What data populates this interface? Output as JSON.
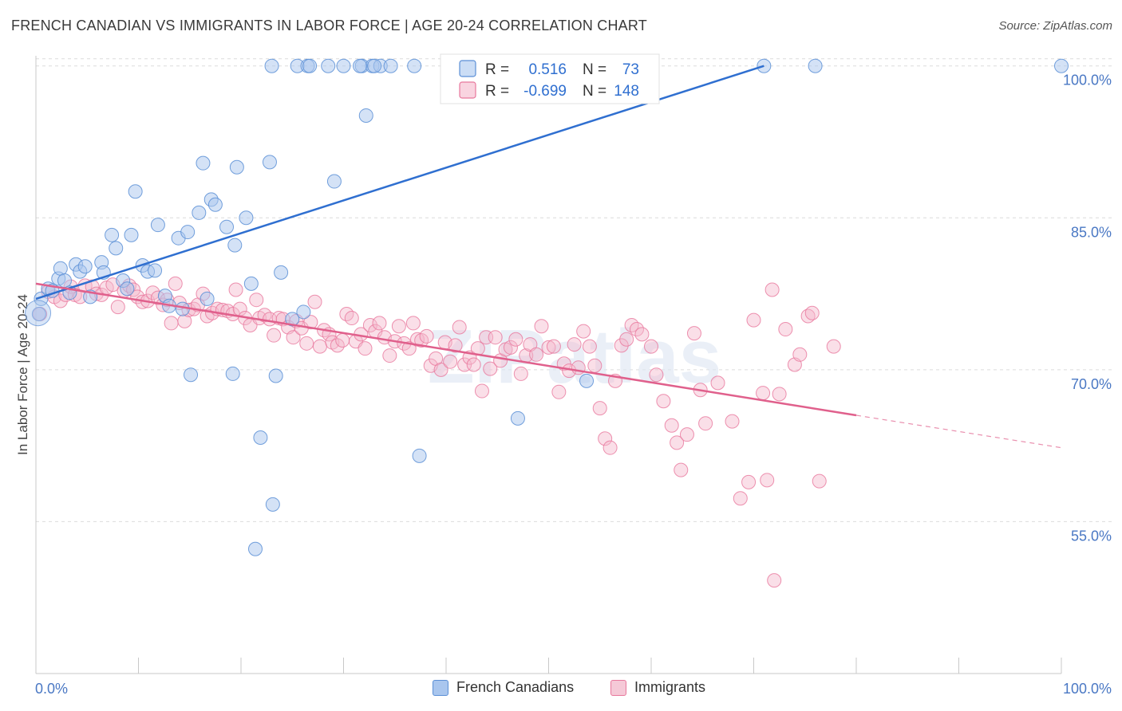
{
  "title": "FRENCH CANADIAN VS IMMIGRANTS IN LABOR FORCE | AGE 20-24 CORRELATION CHART",
  "source": "Source: ZipAtlas.com",
  "watermark": "ZIPatlas",
  "chart_data": {
    "type": "scatter",
    "ylabel": "In Labor Force | Age 20-24",
    "xlim": [
      0,
      100
    ],
    "ylim": [
      40,
      101
    ],
    "x_tick_labels": [
      "0.0%",
      "100.0%"
    ],
    "y_ticks": [
      {
        "value": 55,
        "label": "55.0%"
      },
      {
        "value": 70,
        "label": "70.0%"
      },
      {
        "value": 85,
        "label": "85.0%"
      },
      {
        "value": 100,
        "label": "100.0%"
      }
    ],
    "grid": true,
    "legend_position": "top-center",
    "stats": [
      {
        "r_label": "R =",
        "r_value": "0.516",
        "n_label": "N =",
        "n_value": "73"
      },
      {
        "r_label": "R =",
        "r_value": "-0.699",
        "n_label": "N =",
        "n_value": "148"
      }
    ],
    "series": [
      {
        "name": "French Canadians",
        "color": "#5b8fd6",
        "fill": "#a9c6ee",
        "trend": {
          "x": [
            0,
            71
          ],
          "y": [
            77.0,
            100.0
          ]
        },
        "points": [
          [
            0.3,
            75.5
          ],
          [
            0.5,
            77.0
          ],
          [
            1.2,
            78.0
          ],
          [
            1.6,
            77.8
          ],
          [
            2.2,
            79.0
          ],
          [
            2.4,
            80.0
          ],
          [
            2.8,
            78.8
          ],
          [
            3.3,
            77.6
          ],
          [
            3.9,
            80.4
          ],
          [
            4.3,
            79.7
          ],
          [
            4.8,
            80.2
          ],
          [
            5.3,
            77.2
          ],
          [
            6.4,
            80.6
          ],
          [
            6.6,
            79.6
          ],
          [
            7.4,
            83.3
          ],
          [
            7.8,
            82.0
          ],
          [
            8.5,
            78.8
          ],
          [
            8.9,
            78.0
          ],
          [
            9.3,
            83.3
          ],
          [
            9.7,
            87.6
          ],
          [
            10.4,
            80.3
          ],
          [
            10.9,
            79.7
          ],
          [
            11.6,
            79.8
          ],
          [
            11.9,
            84.3
          ],
          [
            12.6,
            77.3
          ],
          [
            13.0,
            76.3
          ],
          [
            13.9,
            83.0
          ],
          [
            14.3,
            76.0
          ],
          [
            14.8,
            83.6
          ],
          [
            15.1,
            69.5
          ],
          [
            15.9,
            85.5
          ],
          [
            16.3,
            90.4
          ],
          [
            16.7,
            77.0
          ],
          [
            17.1,
            86.8
          ],
          [
            17.5,
            86.3
          ],
          [
            18.6,
            84.1
          ],
          [
            19.2,
            69.6
          ],
          [
            19.4,
            82.3
          ],
          [
            19.6,
            90.0
          ],
          [
            20.5,
            85.0
          ],
          [
            21.0,
            78.5
          ],
          [
            21.4,
            52.3
          ],
          [
            21.9,
            63.3
          ],
          [
            22.8,
            90.5
          ],
          [
            23.1,
            56.7
          ],
          [
            23.4,
            69.4
          ],
          [
            23.9,
            79.6
          ],
          [
            25.0,
            75.0
          ],
          [
            26.1,
            75.7
          ],
          [
            29.1,
            88.6
          ],
          [
            32.2,
            95.1
          ],
          [
            37.4,
            61.5
          ],
          [
            47.0,
            65.2
          ],
          [
            23.0,
            100
          ],
          [
            25.5,
            100
          ],
          [
            26.5,
            100
          ],
          [
            28.5,
            100
          ],
          [
            30.0,
            100
          ],
          [
            31.8,
            100
          ],
          [
            32.8,
            100
          ],
          [
            33.6,
            100
          ],
          [
            34.6,
            100
          ],
          [
            36.9,
            100
          ],
          [
            40.5,
            100
          ],
          [
            42.0,
            100
          ],
          [
            43.8,
            100
          ],
          [
            71.0,
            100
          ],
          [
            76.0,
            100
          ],
          [
            100.0,
            100
          ],
          [
            53.7,
            68.9
          ],
          [
            26.7,
            100
          ],
          [
            31.6,
            100
          ],
          [
            33.0,
            100
          ]
        ]
      },
      {
        "name": "Immigrants",
        "color": "#e8779c",
        "fill": "#f5b8cb",
        "trend": {
          "x": [
            0,
            80
          ],
          "y": [
            78.5,
            65.5
          ]
        },
        "trend_ext": {
          "x": [
            80,
            100
          ],
          "y": [
            65.5,
            62.3
          ]
        },
        "points": [
          [
            0.4,
            75.5
          ],
          [
            1.2,
            77.7
          ],
          [
            1.8,
            77.2
          ],
          [
            2.4,
            76.8
          ],
          [
            2.9,
            77.4
          ],
          [
            3.4,
            78.2
          ],
          [
            3.8,
            77.4
          ],
          [
            4.3,
            77.2
          ],
          [
            4.8,
            78.3
          ],
          [
            5.5,
            78.2
          ],
          [
            5.9,
            77.5
          ],
          [
            6.4,
            77.4
          ],
          [
            6.9,
            78.1
          ],
          [
            7.5,
            78.4
          ],
          [
            8.0,
            76.2
          ],
          [
            8.6,
            77.8
          ],
          [
            9.1,
            78.3
          ],
          [
            9.5,
            77.9
          ],
          [
            9.9,
            77.2
          ],
          [
            10.4,
            76.7
          ],
          [
            10.9,
            76.8
          ],
          [
            11.4,
            77.6
          ],
          [
            11.9,
            77.1
          ],
          [
            12.4,
            76.4
          ],
          [
            12.8,
            76.9
          ],
          [
            13.2,
            74.6
          ],
          [
            13.6,
            78.5
          ],
          [
            14.0,
            76.6
          ],
          [
            14.5,
            74.8
          ],
          [
            14.9,
            75.9
          ],
          [
            15.4,
            76.0
          ],
          [
            15.8,
            76.4
          ],
          [
            16.3,
            77.5
          ],
          [
            16.7,
            75.3
          ],
          [
            17.2,
            75.6
          ],
          [
            17.7,
            76.0
          ],
          [
            18.2,
            75.9
          ],
          [
            18.7,
            75.8
          ],
          [
            19.2,
            75.5
          ],
          [
            19.5,
            77.9
          ],
          [
            19.9,
            76.0
          ],
          [
            20.4,
            75.1
          ],
          [
            20.9,
            74.4
          ],
          [
            21.5,
            76.9
          ],
          [
            21.8,
            75.1
          ],
          [
            22.3,
            75.4
          ],
          [
            22.8,
            75.0
          ],
          [
            23.2,
            73.4
          ],
          [
            23.7,
            75.1
          ],
          [
            24.1,
            75.0
          ],
          [
            24.6,
            74.2
          ],
          [
            25.1,
            73.2
          ],
          [
            25.4,
            74.8
          ],
          [
            25.9,
            74.1
          ],
          [
            26.4,
            72.6
          ],
          [
            26.8,
            74.7
          ],
          [
            27.2,
            76.7
          ],
          [
            27.7,
            72.3
          ],
          [
            28.1,
            73.9
          ],
          [
            28.6,
            73.5
          ],
          [
            28.9,
            72.7
          ],
          [
            29.4,
            72.4
          ],
          [
            29.9,
            72.9
          ],
          [
            30.3,
            75.5
          ],
          [
            30.8,
            75.1
          ],
          [
            31.2,
            72.8
          ],
          [
            31.7,
            73.5
          ],
          [
            32.1,
            72.1
          ],
          [
            32.6,
            74.4
          ],
          [
            33.1,
            73.8
          ],
          [
            33.5,
            74.6
          ],
          [
            34.0,
            73.2
          ],
          [
            34.5,
            71.4
          ],
          [
            35.0,
            72.8
          ],
          [
            35.4,
            74.3
          ],
          [
            35.9,
            72.6
          ],
          [
            36.4,
            72.1
          ],
          [
            36.8,
            74.6
          ],
          [
            37.2,
            73.0
          ],
          [
            37.6,
            72.9
          ],
          [
            38.1,
            73.3
          ],
          [
            38.5,
            70.4
          ],
          [
            39.0,
            71.1
          ],
          [
            39.5,
            70.0
          ],
          [
            39.9,
            72.7
          ],
          [
            40.4,
            70.8
          ],
          [
            40.9,
            72.4
          ],
          [
            41.3,
            74.2
          ],
          [
            41.8,
            70.5
          ],
          [
            42.3,
            71.2
          ],
          [
            42.7,
            70.5
          ],
          [
            43.1,
            72.1
          ],
          [
            43.5,
            67.9
          ],
          [
            43.9,
            73.2
          ],
          [
            44.3,
            70.1
          ],
          [
            44.8,
            73.2
          ],
          [
            45.3,
            70.9
          ],
          [
            45.8,
            72.0
          ],
          [
            46.3,
            72.2
          ],
          [
            46.8,
            73.0
          ],
          [
            47.3,
            69.6
          ],
          [
            47.8,
            71.4
          ],
          [
            48.2,
            72.5
          ],
          [
            48.8,
            71.5
          ],
          [
            49.3,
            74.3
          ],
          [
            50.0,
            72.2
          ],
          [
            50.5,
            72.3
          ],
          [
            51.0,
            67.8
          ],
          [
            51.5,
            70.6
          ],
          [
            52.0,
            69.9
          ],
          [
            52.5,
            72.5
          ],
          [
            52.9,
            70.2
          ],
          [
            53.4,
            73.8
          ],
          [
            54.0,
            72.3
          ],
          [
            54.5,
            70.4
          ],
          [
            55.0,
            66.2
          ],
          [
            55.5,
            63.2
          ],
          [
            56.0,
            62.3
          ],
          [
            56.5,
            68.9
          ],
          [
            57.1,
            72.4
          ],
          [
            57.6,
            73.0
          ],
          [
            58.1,
            74.4
          ],
          [
            58.6,
            74.0
          ],
          [
            59.1,
            73.5
          ],
          [
            60.0,
            72.3
          ],
          [
            60.5,
            69.5
          ],
          [
            61.2,
            66.9
          ],
          [
            62.0,
            64.5
          ],
          [
            62.5,
            62.8
          ],
          [
            62.9,
            60.1
          ],
          [
            63.5,
            63.6
          ],
          [
            64.2,
            73.6
          ],
          [
            64.8,
            68.0
          ],
          [
            65.3,
            64.7
          ],
          [
            66.5,
            68.7
          ],
          [
            67.9,
            64.9
          ],
          [
            68.7,
            57.3
          ],
          [
            69.5,
            58.9
          ],
          [
            70.0,
            74.9
          ],
          [
            70.9,
            67.7
          ],
          [
            71.3,
            59.1
          ],
          [
            71.8,
            77.9
          ],
          [
            72.0,
            49.2
          ],
          [
            72.5,
            67.6
          ],
          [
            73.1,
            74.0
          ],
          [
            74.0,
            70.5
          ],
          [
            74.5,
            71.5
          ],
          [
            75.3,
            75.3
          ],
          [
            75.7,
            75.6
          ],
          [
            76.4,
            59.0
          ],
          [
            77.8,
            72.3
          ]
        ]
      }
    ]
  }
}
